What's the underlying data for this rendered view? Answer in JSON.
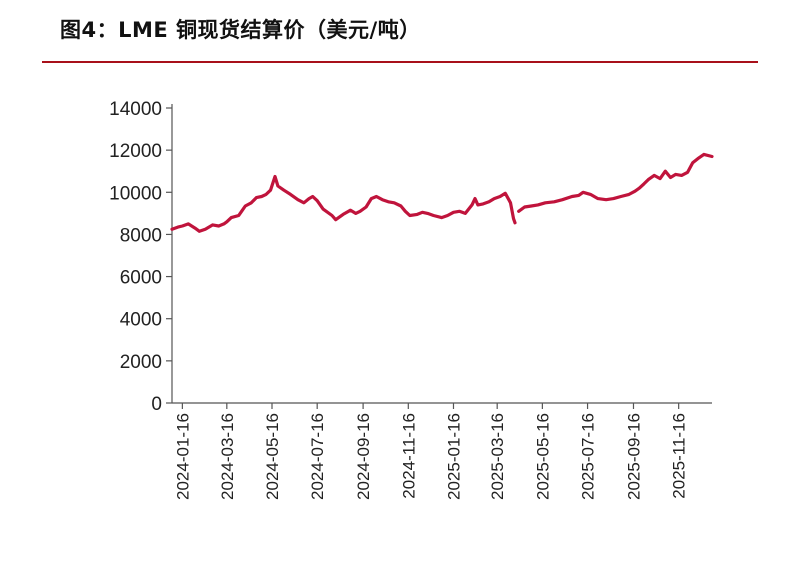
{
  "header": {
    "title": "图4：LME 铜现货结算价（美元/吨）"
  },
  "colors": {
    "line": "#c0143c",
    "rule": "#a8101a",
    "axis": "#555555"
  },
  "chart_data": {
    "type": "line",
    "title": "图4：LME 铜现货结算价（美元/吨）",
    "xlabel": "",
    "ylabel": "",
    "ylim": [
      0,
      14000
    ],
    "yticks": [
      0,
      2000,
      4000,
      6000,
      8000,
      10000,
      12000,
      14000
    ],
    "grid": false,
    "legend": "none",
    "x_start": "2024-01-02",
    "x_end": "2025-12-31",
    "xticks": [
      "2024-01-16",
      "2024-03-16",
      "2024-05-16",
      "2024-07-16",
      "2024-09-16",
      "2024-11-16",
      "2025-01-16",
      "2025-03-16",
      "2025-05-16",
      "2025-07-16",
      "2025-09-16",
      "2025-11-16"
    ],
    "series": [
      {
        "name": "LME铜现货结算价",
        "points": [
          [
            "2024-01-02",
            8250
          ],
          [
            "2024-01-10",
            8350
          ],
          [
            "2024-01-16",
            8400
          ],
          [
            "2024-01-24",
            8500
          ],
          [
            "2024-02-02",
            8300
          ],
          [
            "2024-02-08",
            8150
          ],
          [
            "2024-02-16",
            8250
          ],
          [
            "2024-02-26",
            8450
          ],
          [
            "2024-03-05",
            8400
          ],
          [
            "2024-03-12",
            8500
          ],
          [
            "2024-03-16",
            8600
          ],
          [
            "2024-03-22",
            8800
          ],
          [
            "2024-04-01",
            8900
          ],
          [
            "2024-04-05",
            9100
          ],
          [
            "2024-04-10",
            9350
          ],
          [
            "2024-04-18",
            9500
          ],
          [
            "2024-04-25",
            9750
          ],
          [
            "2024-05-02",
            9800
          ],
          [
            "2024-05-08",
            9900
          ],
          [
            "2024-05-14",
            10100
          ],
          [
            "2024-05-20",
            10750
          ],
          [
            "2024-05-24",
            10300
          ],
          [
            "2024-06-01",
            10100
          ],
          [
            "2024-06-10",
            9900
          ],
          [
            "2024-06-20",
            9650
          ],
          [
            "2024-06-28",
            9500
          ],
          [
            "2024-07-05",
            9700
          ],
          [
            "2024-07-10",
            9800
          ],
          [
            "2024-07-16",
            9600
          ],
          [
            "2024-07-24",
            9200
          ],
          [
            "2024-08-05",
            8900
          ],
          [
            "2024-08-10",
            8700
          ],
          [
            "2024-08-20",
            8950
          ],
          [
            "2024-08-30",
            9150
          ],
          [
            "2024-09-06",
            9000
          ],
          [
            "2024-09-12",
            9100
          ],
          [
            "2024-09-20",
            9300
          ],
          [
            "2024-09-27",
            9700
          ],
          [
            "2024-10-04",
            9800
          ],
          [
            "2024-10-12",
            9650
          ],
          [
            "2024-10-20",
            9550
          ],
          [
            "2024-10-28",
            9500
          ],
          [
            "2024-11-06",
            9350
          ],
          [
            "2024-11-12",
            9100
          ],
          [
            "2024-11-18",
            8900
          ],
          [
            "2024-11-28",
            8950
          ],
          [
            "2024-12-05",
            9050
          ],
          [
            "2024-12-12",
            9000
          ],
          [
            "2024-12-20",
            8900
          ],
          [
            "2024-12-31",
            8800
          ],
          [
            "2025-01-08",
            8900
          ],
          [
            "2025-01-16",
            9050
          ],
          [
            "2025-01-24",
            9100
          ],
          [
            "2025-02-01",
            9000
          ],
          [
            "2025-02-10",
            9400
          ],
          [
            "2025-02-14",
            9700
          ],
          [
            "2025-02-18",
            9400
          ],
          [
            "2025-02-25",
            9450
          ],
          [
            "2025-03-05",
            9550
          ],
          [
            "2025-03-12",
            9700
          ],
          [
            "2025-03-20",
            9800
          ],
          [
            "2025-03-27",
            9950
          ],
          [
            "2025-04-03",
            9500
          ],
          [
            "2025-04-07",
            8750
          ],
          [
            "2025-04-09",
            8550
          ],
          [
            "2025-04-14",
            9100
          ],
          [
            "2025-04-22",
            9300
          ],
          [
            "2025-05-01",
            9350
          ],
          [
            "2025-05-10",
            9400
          ],
          [
            "2025-05-20",
            9500
          ],
          [
            "2025-06-01",
            9550
          ],
          [
            "2025-06-12",
            9650
          ],
          [
            "2025-06-25",
            9800
          ],
          [
            "2025-07-04",
            9850
          ],
          [
            "2025-07-10",
            10000
          ],
          [
            "2025-07-20",
            9900
          ],
          [
            "2025-07-30",
            9700
          ],
          [
            "2025-08-10",
            9650
          ],
          [
            "2025-08-20",
            9700
          ],
          [
            "2025-08-30",
            9800
          ],
          [
            "2025-09-10",
            9900
          ],
          [
            "2025-09-18",
            10050
          ],
          [
            "2025-09-24",
            10200
          ],
          [
            "2025-09-30",
            10400
          ],
          [
            "2025-10-06",
            10600
          ],
          [
            "2025-10-14",
            10800
          ],
          [
            "2025-10-22",
            10650
          ],
          [
            "2025-10-29",
            11000
          ],
          [
            "2025-11-05",
            10700
          ],
          [
            "2025-11-12",
            10850
          ],
          [
            "2025-11-20",
            10800
          ],
          [
            "2025-11-28",
            10950
          ],
          [
            "2025-12-05",
            11400
          ],
          [
            "2025-12-12",
            11600
          ],
          [
            "2025-12-20",
            11800
          ],
          [
            "2025-12-31",
            11700
          ]
        ]
      }
    ]
  }
}
